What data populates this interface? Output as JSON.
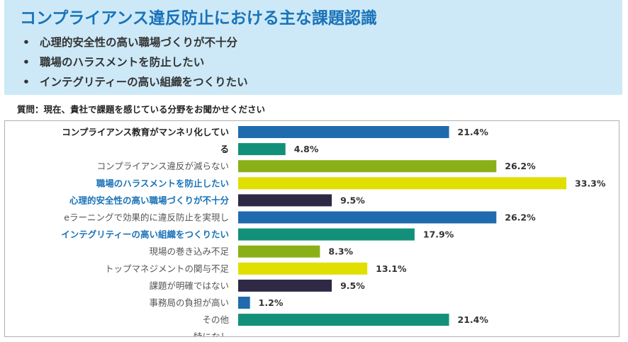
{
  "header": {
    "title": "コンプライアンス違反防止における主な課題認識",
    "bullets": [
      "心理的安全性の高い職場づくりが不十分",
      "職場のハラスメントを防止したい",
      "インテグリティーの高い組織をつくりたい"
    ]
  },
  "question": "質問：現在、貴社で課題を感じている分野をお聞かせください",
  "chart_data": {
    "type": "bar",
    "orientation": "horizontal",
    "title": "",
    "xlabel": "",
    "ylabel": "",
    "xlim": [
      0,
      33.3
    ],
    "value_suffix": "%",
    "bars": [
      {
        "label": [
          "コンプライアンス教育がマンネリ化してい",
          "る"
        ],
        "value": 21.4,
        "color": "#1f6bad",
        "label_color": "#222222",
        "bold": true
      },
      {
        "label": [],
        "value": 4.8,
        "color": "#13907a",
        "label_color": "#555555",
        "bold": false
      },
      {
        "label": [
          "コンプライアンス違反が減らない"
        ],
        "value": 26.2,
        "color": "#8ab018",
        "label_color": "#555555",
        "bold": false
      },
      {
        "label": [
          "職場のハラスメントを防止したい"
        ],
        "value": 33.3,
        "color": "#e0df00",
        "label_color": "#1a73b8",
        "bold": true
      },
      {
        "label": [
          "心理的安全性の高い職場づくりが不十分"
        ],
        "value": 9.5,
        "color": "#2e2a45",
        "label_color": "#1a73b8",
        "bold": true
      },
      {
        "label": [
          "eラーニングで効果的に違反防止を実現し",
          "たい"
        ],
        "value": 26.2,
        "color": "#1f6bad",
        "label_color": "#555555",
        "bold": false
      },
      {
        "label": [
          "インテグリティーの高い組織をつくりたい"
        ],
        "value": 17.9,
        "color": "#13907a",
        "label_color": "#1a73b8",
        "bold": true
      },
      {
        "label": [
          "現場の巻き込み不足"
        ],
        "value": 8.3,
        "color": "#8ab018",
        "label_color": "#555555",
        "bold": false
      },
      {
        "label": [
          "トップマネジメントの関与不足"
        ],
        "value": 13.1,
        "color": "#e0df00",
        "label_color": "#555555",
        "bold": false
      },
      {
        "label": [
          "課題が明確ではない"
        ],
        "value": 9.5,
        "color": "#2e2a45",
        "label_color": "#555555",
        "bold": false
      },
      {
        "label": [
          "事務局の負担が高い"
        ],
        "value": 1.2,
        "color": "#1f6bad",
        "label_color": "#555555",
        "bold": false
      },
      {
        "label": [
          "その他"
        ],
        "value": 21.4,
        "color": "#13907a",
        "label_color": "#555555",
        "bold": false
      },
      {
        "label": [
          "特になし"
        ],
        "value": null,
        "color": "#13907a",
        "label_color": "#555555",
        "bold": false
      }
    ]
  }
}
